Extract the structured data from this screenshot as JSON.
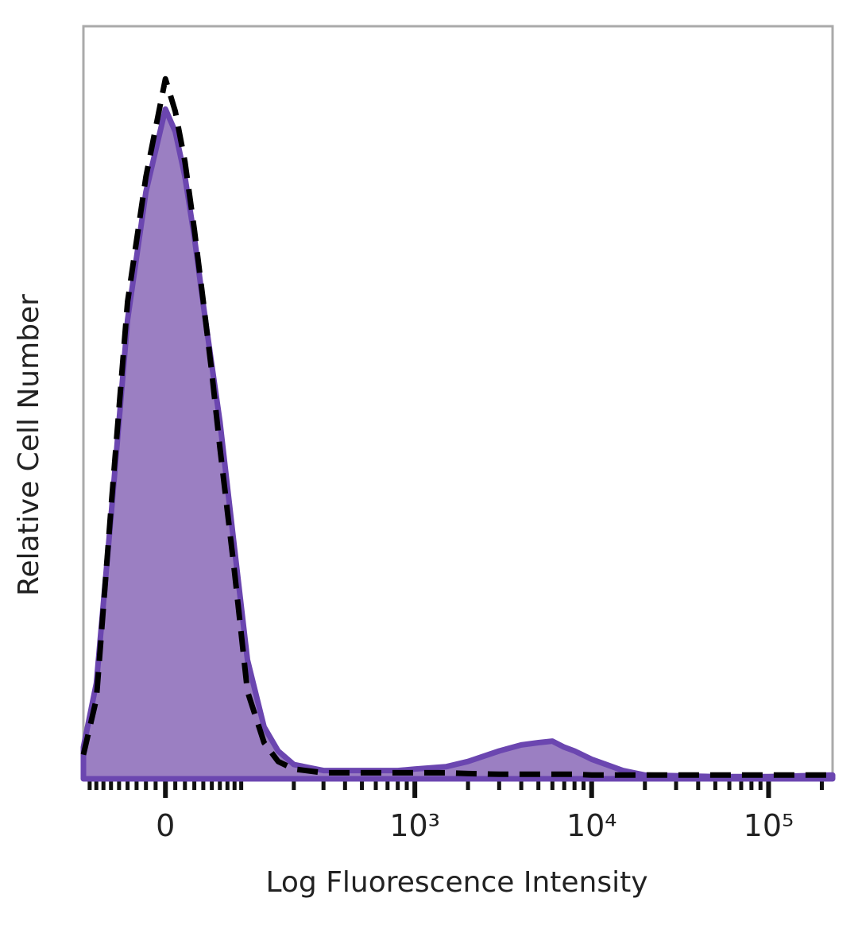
{
  "chart_data": {
    "type": "histogram-overlay",
    "x_label": "Log Fluorescence Intensity",
    "y_label": "Relative Cell Number",
    "xscale": "asinh",
    "xlim": [
      -100,
      230000
    ],
    "ylim": [
      0,
      100
    ],
    "xticks": [
      0,
      {
        "value": 1000,
        "label": "10³"
      },
      {
        "value": 10000,
        "label": "10⁴"
      },
      {
        "value": 100000,
        "label": "10⁵"
      }
    ],
    "xminorticks": [
      -90,
      -80,
      -70,
      -60,
      -50,
      -40,
      -30,
      -20,
      -10,
      10,
      20,
      30,
      40,
      50,
      60,
      70,
      80,
      90,
      200,
      300,
      400,
      500,
      600,
      700,
      800,
      900,
      2000,
      3000,
      4000,
      5000,
      6000,
      7000,
      8000,
      9000,
      20000,
      30000,
      40000,
      50000,
      60000,
      70000,
      80000,
      90000,
      200000
    ],
    "x": [
      -100,
      -80,
      -60,
      -40,
      -20,
      0,
      10,
      20,
      30,
      40,
      50,
      60,
      80,
      100,
      130,
      160,
      200,
      300,
      500,
      800,
      1000,
      1500,
      2000,
      3000,
      4000,
      5000,
      6000,
      7000,
      8000,
      10000,
      15000,
      20000,
      50000,
      100000,
      230000
    ],
    "series": [
      {
        "color": "#9b7fc2",
        "line_color": "#6b46b0",
        "style": "filled",
        "values": [
          4.2,
          12.7,
          34.8,
          61,
          78,
          89,
          86,
          80,
          72,
          63,
          55,
          47.5,
          30.6,
          15.8,
          6.9,
          3.7,
          1.9,
          1.1,
          1.1,
          1.1,
          1.3,
          1.6,
          2.3,
          3.7,
          4.5,
          4.8,
          5.0,
          4.2,
          3.7,
          2.6,
          1.1,
          0.5,
          0.3,
          0.3,
          0.5
        ]
      },
      {
        "color": "#000000",
        "style": "dashed",
        "values": [
          3.2,
          10.6,
          35.9,
          63.4,
          80,
          93,
          88.7,
          82,
          73,
          63.4,
          54,
          44,
          27.5,
          11.6,
          4.8,
          2.3,
          1.3,
          0.8,
          0.8,
          0.8,
          0.8,
          0.8,
          0.7,
          0.6,
          0.6,
          0.6,
          0.6,
          0.6,
          0.6,
          0.5,
          0.5,
          0.5,
          0.5,
          0.5,
          0.5
        ]
      }
    ]
  }
}
